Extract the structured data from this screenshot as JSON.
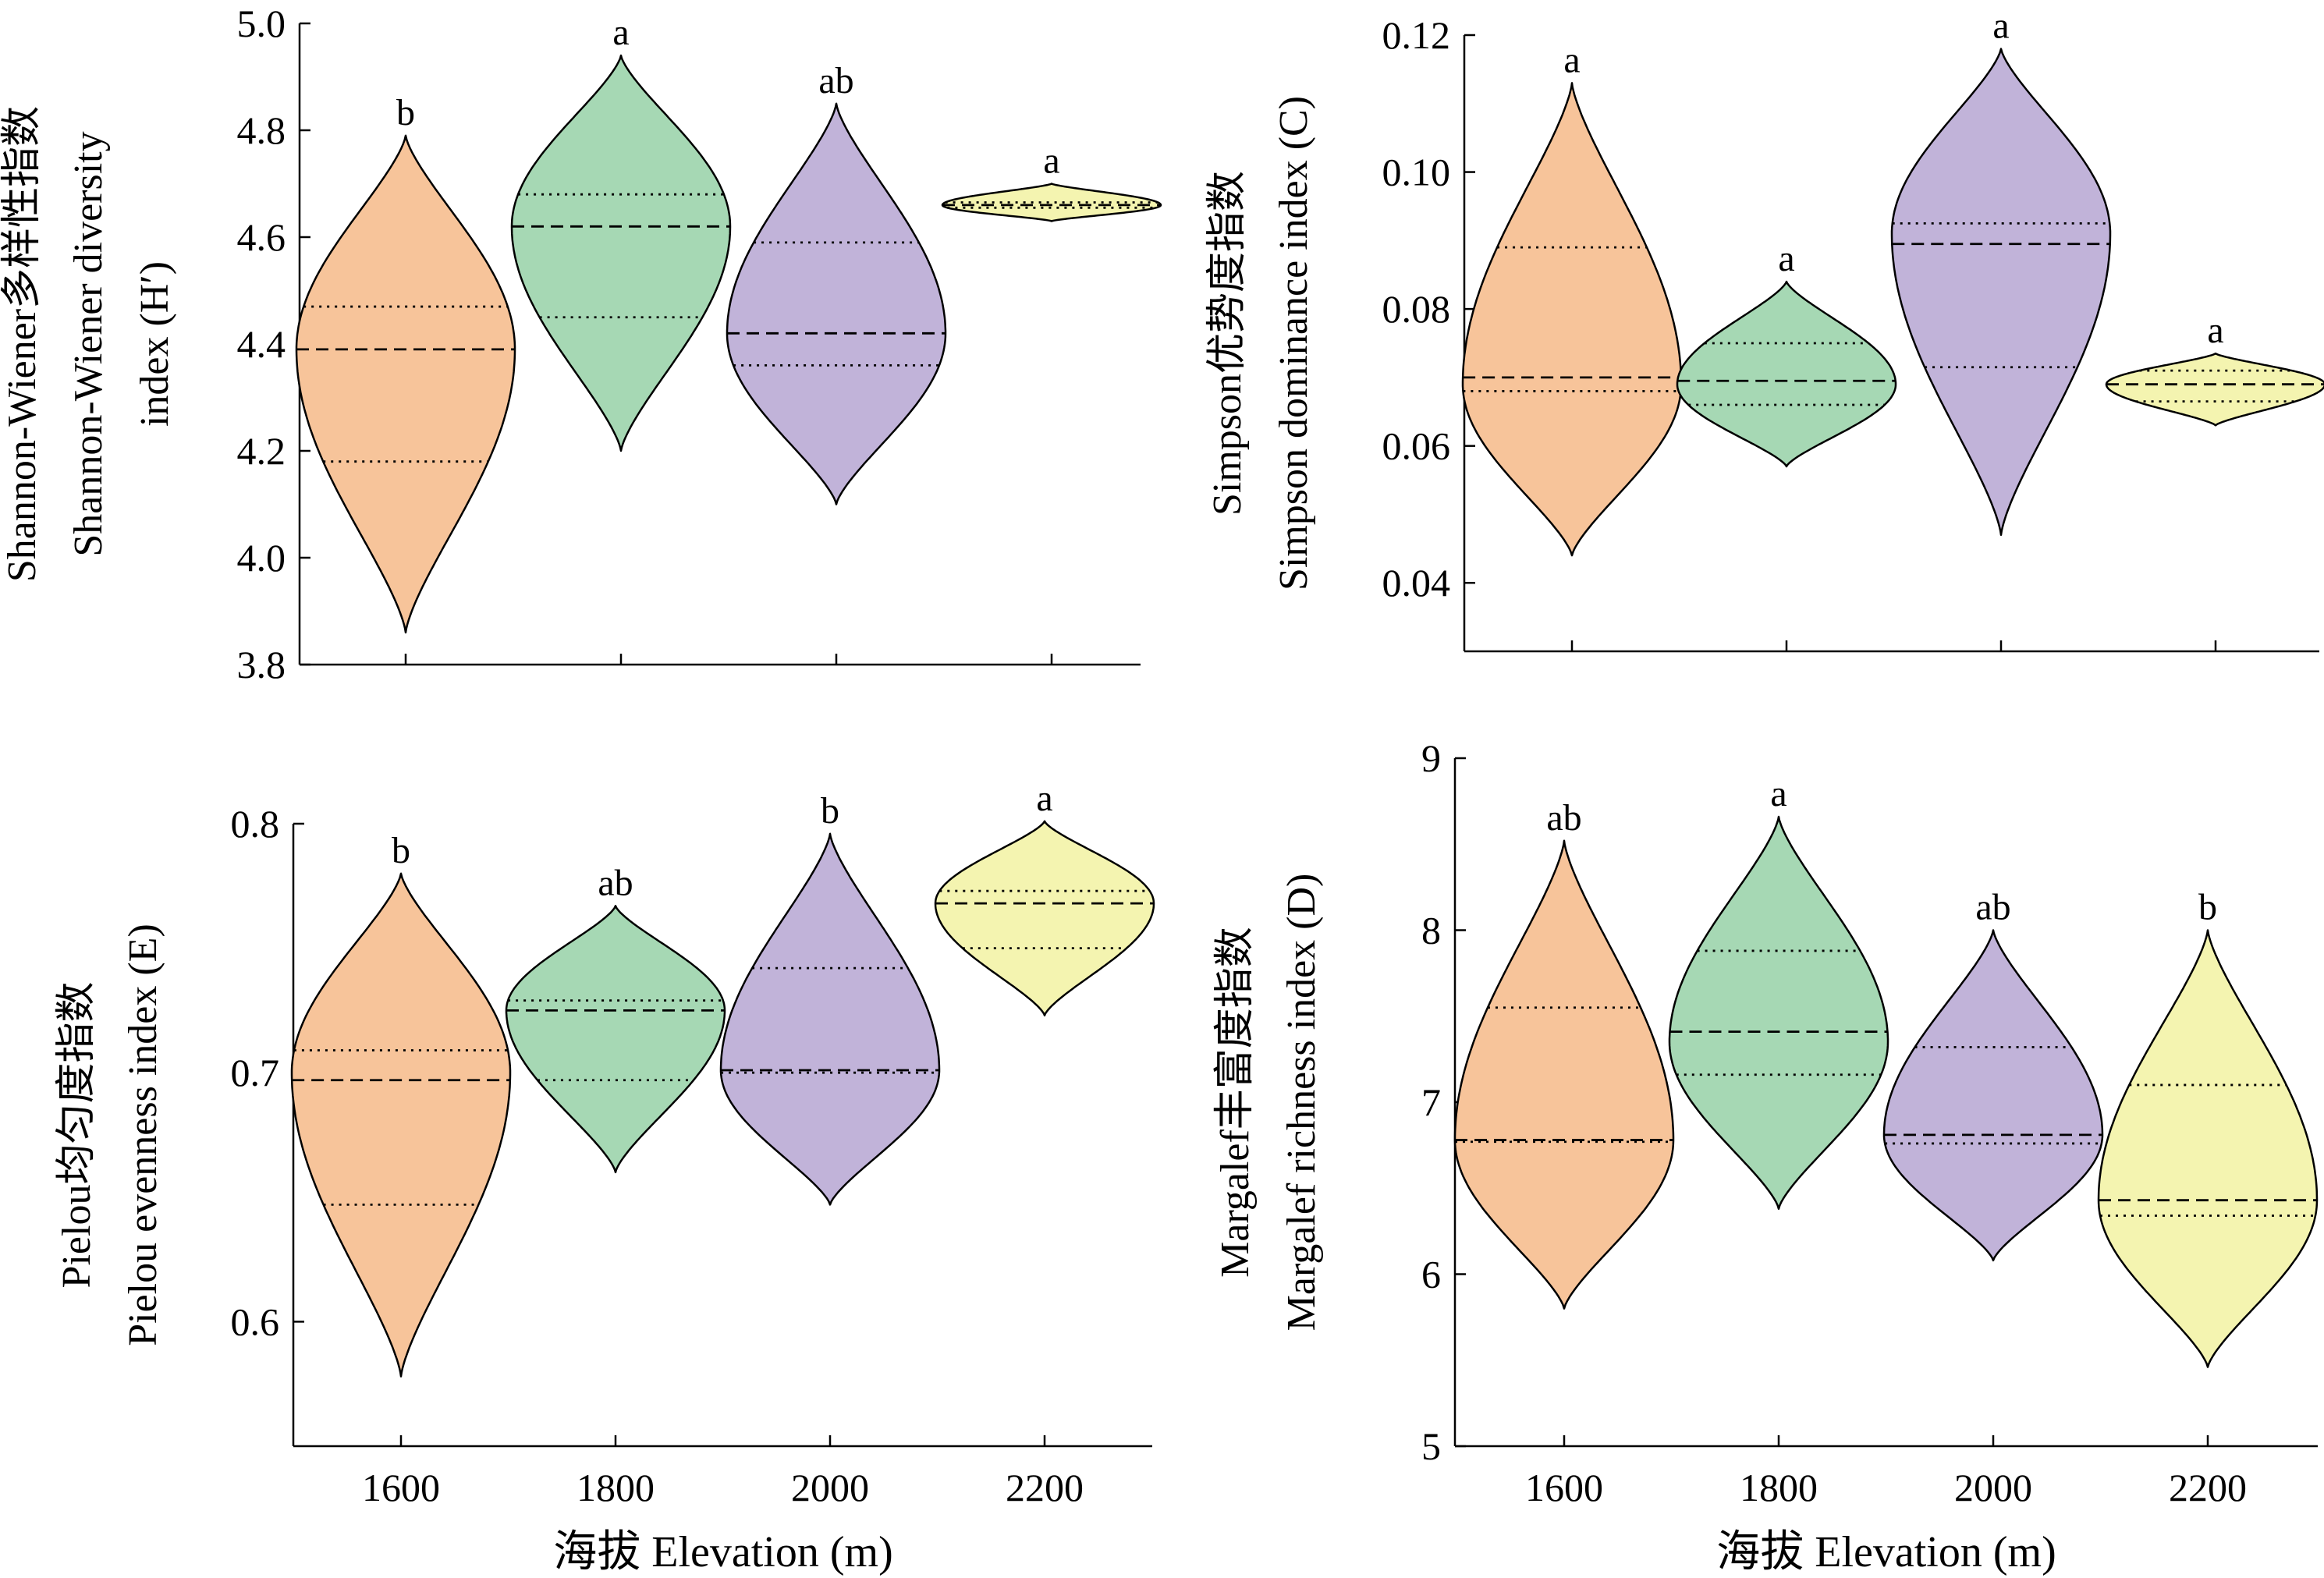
{
  "figure": {
    "x_axis_title": "海拔 Elevation (m)",
    "colors": {
      "1600": "#f7c49a",
      "1800": "#a6d8b4",
      "2000": "#c1b3d9",
      "2200": "#f4f4b0",
      "outline": "#000000"
    }
  },
  "chart_data": [
    {
      "type": "violin",
      "panel": "top-left",
      "ylabel_lines": [
        "Shannon-Wiener多样性指数",
        "Shannon-Wiener diversity",
        "index (H′)"
      ],
      "ylim": [
        3.8,
        5.0
      ],
      "yticks": [
        "3.8",
        "4.0",
        "4.2",
        "4.4",
        "4.6",
        "4.8",
        "5.0"
      ],
      "categories": [
        "1600",
        "1800",
        "2000",
        "2200"
      ],
      "show_x_tick_labels": false,
      "violins": [
        {
          "x": "1600",
          "min": 3.86,
          "max": 4.79,
          "q1": 4.18,
          "median": 4.39,
          "q3": 4.47,
          "mode": 4.39,
          "significance": "b"
        },
        {
          "x": "1800",
          "min": 4.2,
          "max": 4.94,
          "q1": 4.45,
          "median": 4.62,
          "q3": 4.68,
          "mode": 4.62,
          "significance": "a"
        },
        {
          "x": "2000",
          "min": 4.1,
          "max": 4.85,
          "q1": 4.36,
          "median": 4.42,
          "q3": 4.59,
          "mode": 4.42,
          "significance": "ab"
        },
        {
          "x": "2200",
          "min": 4.63,
          "max": 4.7,
          "q1": 4.655,
          "median": 4.66,
          "q3": 4.665,
          "mode": 4.66,
          "significance": "a"
        }
      ]
    },
    {
      "type": "violin",
      "panel": "top-right",
      "ylabel_lines": [
        "Simpson优势度指数",
        "Simpson dominance index (C)"
      ],
      "ylim": [
        0.03,
        0.12
      ],
      "yticks": [
        "0.04",
        "0.06",
        "0.08",
        "0.10",
        "0.12"
      ],
      "categories": [
        "1600",
        "1800",
        "2000",
        "2200"
      ],
      "show_x_tick_labels": false,
      "violins": [
        {
          "x": "1600",
          "min": 0.044,
          "max": 0.113,
          "q1": 0.068,
          "median": 0.07,
          "q3": 0.089,
          "mode": 0.069,
          "significance": "a"
        },
        {
          "x": "1800",
          "min": 0.057,
          "max": 0.084,
          "q1": 0.066,
          "median": 0.0695,
          "q3": 0.075,
          "mode": 0.069,
          "significance": "a"
        },
        {
          "x": "2000",
          "min": 0.047,
          "max": 0.118,
          "q1": 0.0715,
          "median": 0.0895,
          "q3": 0.0925,
          "mode": 0.091,
          "significance": "a"
        },
        {
          "x": "2200",
          "min": 0.063,
          "max": 0.0735,
          "q1": 0.0665,
          "median": 0.069,
          "q3": 0.071,
          "mode": 0.069,
          "significance": "a"
        }
      ]
    },
    {
      "type": "violin",
      "panel": "bottom-left",
      "ylabel_lines": [
        "Pielou均匀度指数",
        "Pielou evenness index (E)"
      ],
      "ylim": [
        0.55,
        0.8
      ],
      "yticks": [
        "0.6",
        "0.7",
        "0.8"
      ],
      "categories": [
        "1600",
        "1800",
        "2000",
        "2200"
      ],
      "show_x_tick_labels": true,
      "violins": [
        {
          "x": "1600",
          "min": 0.578,
          "max": 0.78,
          "q1": 0.647,
          "median": 0.697,
          "q3": 0.709,
          "mode": 0.7,
          "significance": "b"
        },
        {
          "x": "1800",
          "min": 0.66,
          "max": 0.767,
          "q1": 0.697,
          "median": 0.725,
          "q3": 0.729,
          "mode": 0.725,
          "significance": "ab"
        },
        {
          "x": "2000",
          "min": 0.647,
          "max": 0.796,
          "q1": 0.7,
          "median": 0.701,
          "q3": 0.742,
          "mode": 0.701,
          "significance": "b"
        },
        {
          "x": "2200",
          "min": 0.723,
          "max": 0.801,
          "q1": 0.75,
          "median": 0.768,
          "q3": 0.773,
          "mode": 0.768,
          "significance": "a"
        }
      ]
    },
    {
      "type": "violin",
      "panel": "bottom-right",
      "ylabel_lines": [
        "Margalef丰富度指数",
        "Margalef richness index (D)"
      ],
      "ylim": [
        5,
        9
      ],
      "yticks": [
        "5",
        "6",
        "7",
        "8",
        "9"
      ],
      "categories": [
        "1600",
        "1800",
        "2000",
        "2200"
      ],
      "show_x_tick_labels": true,
      "violins": [
        {
          "x": "1600",
          "min": 5.8,
          "max": 8.52,
          "q1": 6.77,
          "median": 6.78,
          "q3": 7.55,
          "mode": 6.78,
          "significance": "ab"
        },
        {
          "x": "1800",
          "min": 6.38,
          "max": 8.66,
          "q1": 7.16,
          "median": 7.41,
          "q3": 7.88,
          "mode": 7.35,
          "significance": "a"
        },
        {
          "x": "2000",
          "min": 6.08,
          "max": 8.0,
          "q1": 6.76,
          "median": 6.81,
          "q3": 7.32,
          "mode": 6.81,
          "significance": "ab"
        },
        {
          "x": "2200",
          "min": 5.46,
          "max": 8.0,
          "q1": 6.34,
          "median": 6.43,
          "q3": 7.1,
          "mode": 6.43,
          "significance": "b"
        }
      ]
    }
  ]
}
